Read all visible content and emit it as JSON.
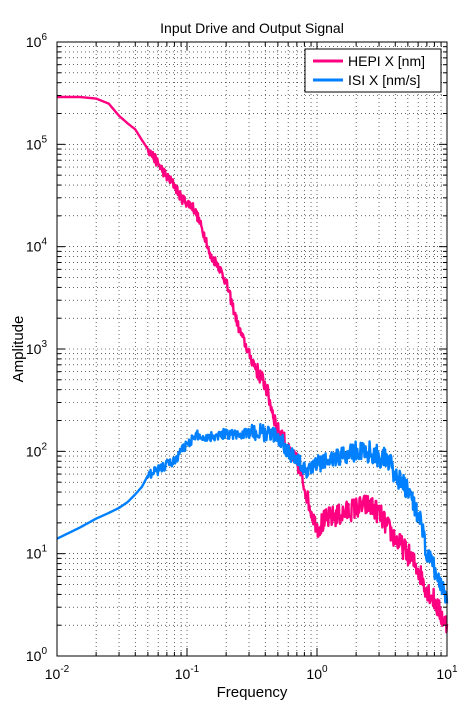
{
  "chart_data": {
    "type": "line",
    "title": "Input Drive and Output Signal",
    "xlabel": "Frequency",
    "ylabel": "Amplitude",
    "xscale": "log",
    "yscale": "log",
    "xlim": [
      0.01,
      10
    ],
    "ylim": [
      1,
      1000000
    ],
    "grid": true,
    "legend_position": "top-right",
    "x_ticks": [
      {
        "value": 0.01,
        "base": "10",
        "exp": "-2"
      },
      {
        "value": 0.1,
        "base": "10",
        "exp": "-1"
      },
      {
        "value": 1,
        "base": "10",
        "exp": "0"
      },
      {
        "value": 10,
        "base": "10",
        "exp": "1"
      }
    ],
    "y_ticks": [
      {
        "value": 1,
        "base": "10",
        "exp": "0"
      },
      {
        "value": 10,
        "base": "10",
        "exp": "1"
      },
      {
        "value": 100,
        "base": "10",
        "exp": "2"
      },
      {
        "value": 1000,
        "base": "10",
        "exp": "3"
      },
      {
        "value": 10000,
        "base": "10",
        "exp": "4"
      },
      {
        "value": 100000,
        "base": "10",
        "exp": "5"
      },
      {
        "value": 1000000,
        "base": "10",
        "exp": "6"
      }
    ],
    "series": [
      {
        "name": "HEPI X [nm]",
        "color": "#ff0080",
        "x": [
          0.01,
          0.015,
          0.02,
          0.025,
          0.03,
          0.035,
          0.04,
          0.045,
          0.05,
          0.06,
          0.07,
          0.08,
          0.09,
          0.1,
          0.11,
          0.12,
          0.13,
          0.14,
          0.15,
          0.17,
          0.2,
          0.25,
          0.3,
          0.35,
          0.4,
          0.45,
          0.5,
          0.55,
          0.6,
          0.7,
          0.8,
          0.9,
          1.0,
          1.2,
          1.5,
          2.0,
          2.5,
          3.0,
          3.5,
          4.0,
          5.0,
          6.0,
          7.0,
          8.0,
          9.0,
          10.0
        ],
        "y": [
          290000,
          290000,
          280000,
          250000,
          190000,
          160000,
          140000,
          110000,
          90000,
          65000,
          48000,
          40000,
          30000,
          27000,
          25000,
          20000,
          15000,
          12000,
          8000,
          7000,
          4500,
          1600,
          900,
          600,
          450,
          260,
          160,
          140,
          100,
          80,
          45,
          26,
          18,
          22,
          24,
          28,
          30,
          25,
          18,
          14,
          10,
          7,
          4.5,
          3.5,
          2.5,
          2.0
        ]
      },
      {
        "name": "ISI X [nm/s]",
        "color": "#0080ff",
        "x": [
          0.01,
          0.015,
          0.02,
          0.025,
          0.03,
          0.035,
          0.04,
          0.045,
          0.05,
          0.06,
          0.07,
          0.08,
          0.09,
          0.1,
          0.11,
          0.12,
          0.13,
          0.15,
          0.17,
          0.2,
          0.25,
          0.3,
          0.35,
          0.4,
          0.45,
          0.5,
          0.55,
          0.6,
          0.7,
          0.8,
          0.9,
          1.0,
          1.2,
          1.5,
          2.0,
          2.5,
          3.0,
          3.5,
          4.0,
          5.0,
          6.0,
          7.0,
          8.0,
          9.0,
          10.0
        ],
        "y": [
          14,
          18,
          22,
          25,
          28,
          32,
          38,
          45,
          58,
          65,
          75,
          80,
          100,
          120,
          130,
          145,
          135,
          140,
          145,
          150,
          145,
          150,
          155,
          150,
          145,
          140,
          120,
          100,
          85,
          65,
          70,
          75,
          80,
          90,
          100,
          100,
          90,
          80,
          60,
          40,
          25,
          10,
          7,
          5,
          4
        ]
      }
    ]
  }
}
